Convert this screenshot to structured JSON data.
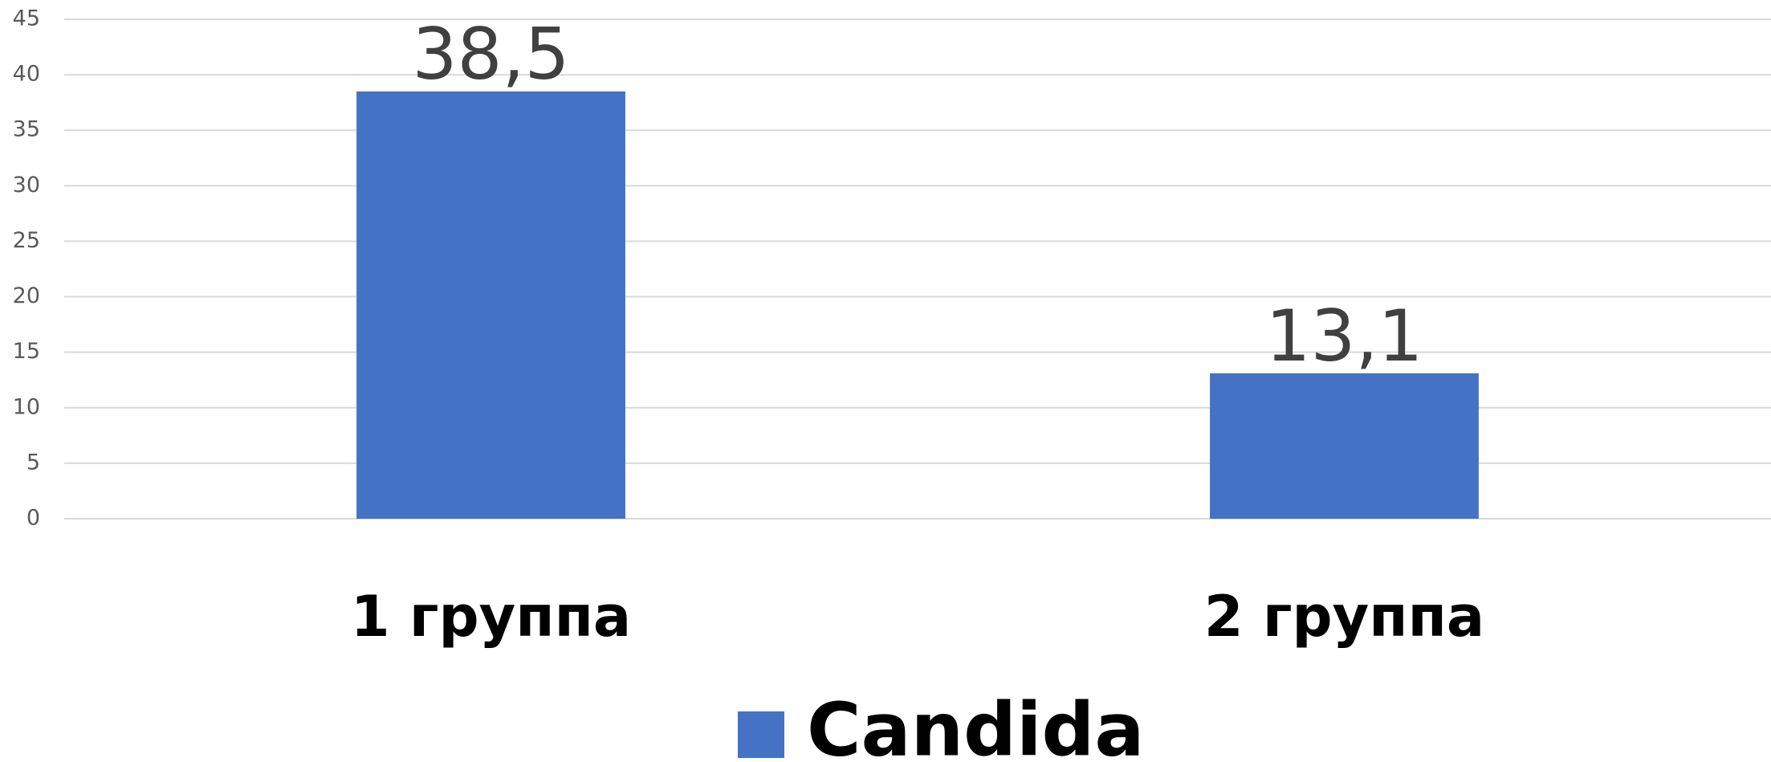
{
  "chart_data": {
    "type": "bar",
    "categories": [
      "1 группа",
      "2 группа"
    ],
    "series": [
      {
        "name": "Candida",
        "color": "#4472c4",
        "values": [
          38.5,
          13.1
        ],
        "value_labels": [
          "38,5",
          "13,1"
        ]
      }
    ],
    "ylim": [
      0,
      45
    ],
    "yticks": [
      0,
      5,
      10,
      15,
      20,
      25,
      30,
      35,
      40,
      45
    ],
    "grid": true,
    "legend": "bottom"
  }
}
